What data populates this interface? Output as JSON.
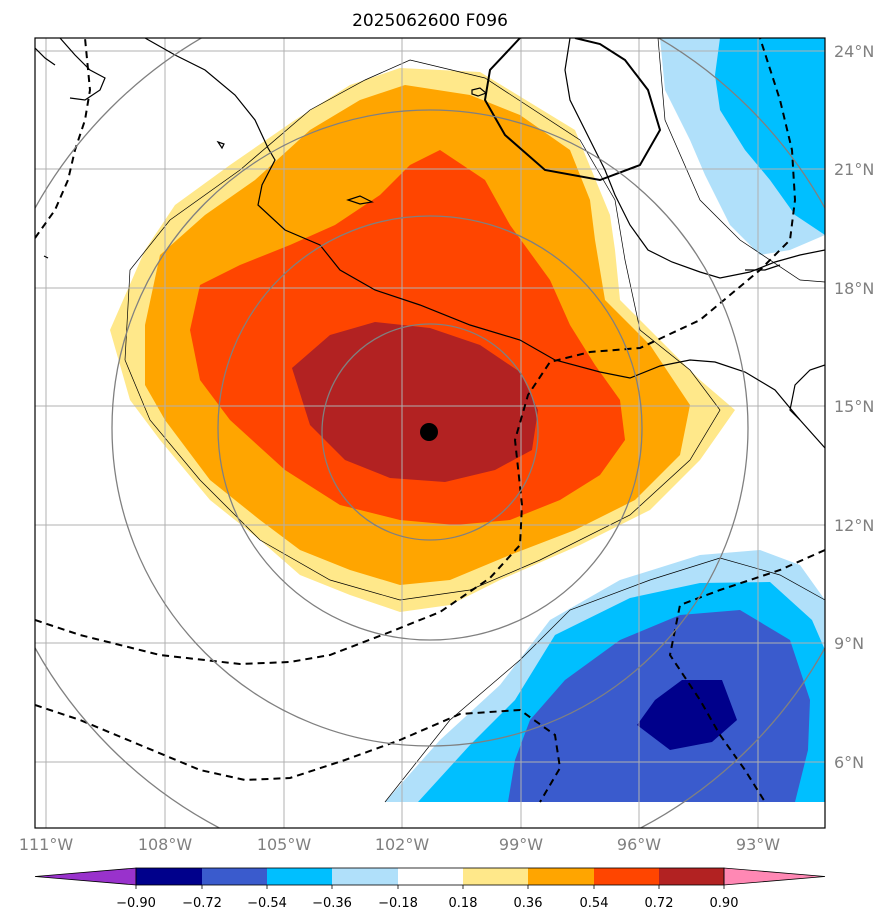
{
  "title": "2025062600 F096",
  "map": {
    "lon_range": [
      -111,
      -91.5
    ],
    "lat_range": [
      4.5,
      24.5
    ],
    "lon_ticks": [
      {
        "value": -111,
        "label": "111°W"
      },
      {
        "value": -108,
        "label": "108°W"
      },
      {
        "value": -105,
        "label": "105°W"
      },
      {
        "value": -102,
        "label": "102°W"
      },
      {
        "value": -99,
        "label": "99°W"
      },
      {
        "value": -96,
        "label": "96°W"
      },
      {
        "value": -93,
        "label": "93°W"
      }
    ],
    "lat_ticks": [
      {
        "value": 24,
        "label": "24°N"
      },
      {
        "value": 21,
        "label": "21°N"
      },
      {
        "value": 18,
        "label": "18°N"
      },
      {
        "value": 15,
        "label": "15°N"
      },
      {
        "value": 12,
        "label": "12°N"
      },
      {
        "value": 9,
        "label": "9°N"
      },
      {
        "value": 6,
        "label": "6°N"
      }
    ],
    "center_marker": {
      "lon": -101.4,
      "lat": 14.4
    },
    "grid": true,
    "range_rings": "concentric gray rings around the marked center",
    "contour_styles": {
      "solid": "black",
      "dashed": "black dashed"
    }
  },
  "colorbar": {
    "levels": [
      "−0.90",
      "−0.72",
      "−0.54",
      "−0.36",
      "−0.18",
      "0.18",
      "0.36",
      "0.54",
      "0.72",
      "0.90"
    ],
    "colors": [
      "#9932cc",
      "#00008b",
      "#3a5bcd",
      "#00bfff",
      "#b0e0fa",
      "#ffffff",
      "#ffe88a",
      "#ffa500",
      "#ff4500",
      "#b22222",
      "#ff88b4"
    ],
    "extend": "both",
    "orientation": "horizontal"
  },
  "colors": {
    "grid": "#b0b0b0",
    "ring": "#808080",
    "coast": "#000000",
    "tick_label": "#808080"
  }
}
